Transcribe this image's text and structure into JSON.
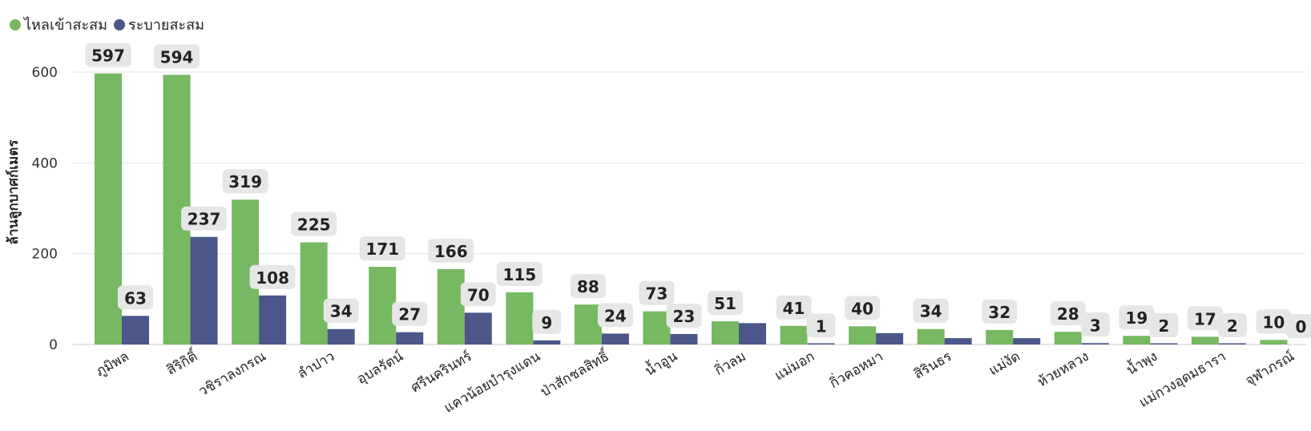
{
  "legend": {
    "inflow_label": "ไหลเข้าสะสม",
    "outflow_label": "ระบายสะสม"
  },
  "colors": {
    "inflow": "#77b862",
    "outflow": "#4a5788",
    "label_bg": "#e6e6e6",
    "grid": "#e6e6e6"
  },
  "chart_data": {
    "type": "bar",
    "ylabel": "ล้านลูกบาศก์เมตร",
    "ylim": [
      0,
      600
    ],
    "yticks": [
      0,
      200,
      400,
      600
    ],
    "grid": true,
    "legend_position": "top-left",
    "categories": [
      "ภูมิพล",
      "สิริกิติ์",
      "วชิราลงกรณ",
      "ลำปาว",
      "อุบลรัตน์",
      "ศรีนครินทร์",
      "แควน้อยบำรุงแดน",
      "ป่าสักชลสิทธิ์",
      "น้ำอูน",
      "กิ่วลม",
      "แม่มอก",
      "กิ่วคอหมา",
      "สิรินธร",
      "แม่งัด",
      "ห้วยหลวง",
      "น้ำพุง",
      "แม่กวงอุดมธารา",
      "จุฬาภรณ์"
    ],
    "series": [
      {
        "name": "ไหลเข้าสะสม",
        "values": [
          597,
          594,
          319,
          225,
          171,
          166,
          115,
          88,
          73,
          51,
          41,
          40,
          34,
          32,
          28,
          19,
          17,
          10
        ]
      },
      {
        "name": "ระบายสะสม",
        "values": [
          63,
          237,
          108,
          34,
          27,
          70,
          9,
          24,
          23,
          47,
          1,
          25,
          14,
          14,
          3,
          2,
          2,
          0
        ]
      }
    ],
    "data_labels": [
      [
        597,
        594,
        319,
        225,
        171,
        166,
        115,
        88,
        73,
        51,
        41,
        40,
        34,
        32,
        28,
        19,
        17,
        10
      ],
      [
        63,
        237,
        108,
        34,
        27,
        70,
        9,
        24,
        23,
        null,
        1,
        null,
        null,
        null,
        3,
        2,
        2,
        0
      ]
    ]
  }
}
